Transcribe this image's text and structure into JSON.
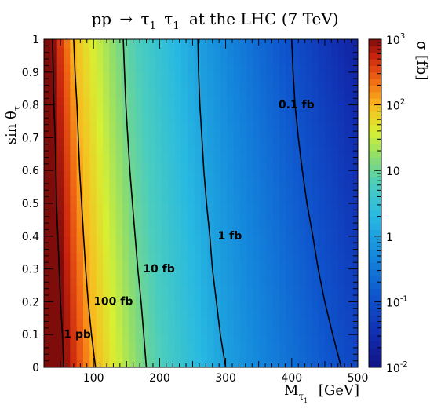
{
  "chart_data": {
    "type": "heatmap",
    "title": {
      "prefix": "pp",
      "arrow": "→",
      "particle": "τ",
      "tilde": "~",
      "sub1": "1",
      "suffix": "at the LHC (7 TeV)"
    },
    "xlabel": {
      "main": "M",
      "sub_particle": "τ",
      "sub_tilde": "~",
      "sub_index": "1",
      "unit": "[GeV]"
    },
    "ylabel": {
      "main": "sin θ",
      "sub_particle": "τ",
      "sub_tilde": "~"
    },
    "zlabel": "σ [fb]",
    "xlim": [
      25,
      500
    ],
    "ylim": [
      0,
      1
    ],
    "zlim": [
      0.01,
      1000
    ],
    "zscale": "log",
    "x_ticks": [
      "100",
      "200",
      "300",
      "400",
      "500"
    ],
    "y_ticks": [
      "0",
      "0.1",
      "0.2",
      "0.3",
      "0.4",
      "0.5",
      "0.6",
      "0.7",
      "0.8",
      "0.9",
      "1"
    ],
    "z_ticks": [
      {
        "base": "10",
        "exp": "-2"
      },
      {
        "base": "10",
        "exp": "-1"
      },
      {
        "base": "1",
        "exp": ""
      },
      {
        "base": "10",
        "exp": ""
      },
      {
        "base": "10",
        "exp": "2"
      },
      {
        "base": "10",
        "exp": "3"
      }
    ],
    "cross_section_model": {
      "contour_mass_at_sin0": {
        "1000": 55,
        "100": 103,
        "10": 180,
        "1": 300,
        "0.1": 475
      },
      "contour_mass_at_sin1": {
        "1000": 38,
        "100": 70,
        "10": 145,
        "1": 258,
        "0.1": 400
      }
    },
    "contours": [
      {
        "label": "1 pb",
        "value": 1000,
        "points": [
          [
            55,
            0
          ],
          [
            53,
            0.1
          ],
          [
            50,
            0.2
          ],
          [
            48,
            0.3
          ],
          [
            46,
            0.4
          ],
          [
            44,
            0.5
          ],
          [
            43,
            0.6
          ],
          [
            42,
            0.7
          ],
          [
            40,
            0.8
          ],
          [
            39,
            0.9
          ],
          [
            38,
            1
          ]
        ]
      },
      {
        "label": "100 fb",
        "value": 100,
        "points": [
          [
            103,
            0
          ],
          [
            97,
            0.1
          ],
          [
            92,
            0.2
          ],
          [
            88,
            0.3
          ],
          [
            85,
            0.4
          ],
          [
            82,
            0.5
          ],
          [
            79,
            0.6
          ],
          [
            77,
            0.7
          ],
          [
            75,
            0.8
          ],
          [
            72,
            0.9
          ],
          [
            70,
            1
          ]
        ]
      },
      {
        "label": "10 fb",
        "value": 10,
        "points": [
          [
            180,
            0
          ],
          [
            176,
            0.1
          ],
          [
            172,
            0.2
          ],
          [
            167,
            0.3
          ],
          [
            163,
            0.4
          ],
          [
            159,
            0.5
          ],
          [
            155,
            0.6
          ],
          [
            152,
            0.7
          ],
          [
            149,
            0.8
          ],
          [
            147,
            0.9
          ],
          [
            145,
            1
          ]
        ]
      },
      {
        "label": "1 fb",
        "value": 1,
        "points": [
          [
            300,
            0
          ],
          [
            292,
            0.1
          ],
          [
            286,
            0.2
          ],
          [
            280,
            0.3
          ],
          [
            276,
            0.4
          ],
          [
            271,
            0.5
          ],
          [
            267,
            0.6
          ],
          [
            264,
            0.7
          ],
          [
            261,
            0.8
          ],
          [
            259,
            0.9
          ],
          [
            258,
            1
          ]
        ]
      },
      {
        "label": "0.1 fb",
        "value": 0.1,
        "points": [
          [
            475,
            0
          ],
          [
            462,
            0.1
          ],
          [
            450,
            0.2
          ],
          [
            440,
            0.3
          ],
          [
            432,
            0.4
          ],
          [
            423,
            0.5
          ],
          [
            416,
            0.6
          ],
          [
            410,
            0.7
          ],
          [
            405,
            0.8
          ],
          [
            402,
            0.9
          ],
          [
            400,
            1
          ]
        ]
      }
    ],
    "contour_label_positions": [
      {
        "label": "1 pb",
        "x": 55,
        "y": 0.09
      },
      {
        "label": "100 fb",
        "x": 100,
        "y": 0.19
      },
      {
        "label": "10 fb",
        "x": 175,
        "y": 0.29
      },
      {
        "label": "1 fb",
        "x": 288,
        "y": 0.39
      },
      {
        "label": "0.1 fb",
        "x": 380,
        "y": 0.79
      }
    ],
    "grid": false,
    "legend": "none",
    "colorbar": "right"
  }
}
